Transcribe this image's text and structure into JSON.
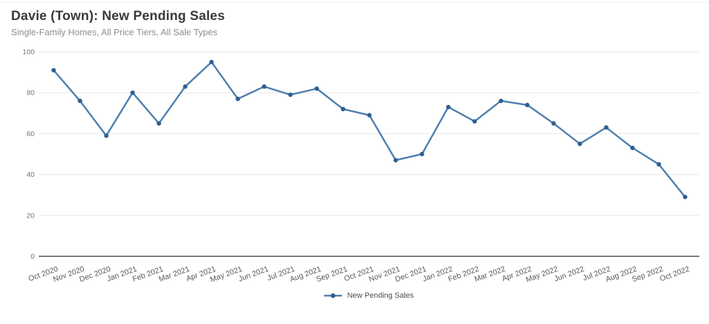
{
  "header": {
    "title": "Davie (Town): New Pending Sales",
    "subtitle": "Single-Family Homes, All Price Tiers, All Sale Types"
  },
  "chart_data": {
    "type": "line",
    "title": "Davie (Town): New Pending Sales",
    "subtitle": "Single-Family Homes, All Price Tiers, All Sale Types",
    "categories": [
      "Oct 2020",
      "Nov 2020",
      "Dec 2020",
      "Jan 2021",
      "Feb 2021",
      "Mar 2021",
      "Apr 2021",
      "May 2021",
      "Jun 2021",
      "Jul 2021",
      "Aug 2021",
      "Sep 2021",
      "Oct 2021",
      "Nov 2021",
      "Dec 2021",
      "Jan 2022",
      "Feb 2022",
      "Mar 2022",
      "Apr 2022",
      "May 2022",
      "Jun 2022",
      "Jul 2022",
      "Aug 2022",
      "Sep 2022",
      "Oct 2022"
    ],
    "series": [
      {
        "name": "New Pending Sales",
        "values": [
          91,
          76,
          59,
          80,
          65,
          83,
          95,
          77,
          83,
          79,
          82,
          72,
          69,
          47,
          50,
          73,
          66,
          76,
          74,
          65,
          55,
          63,
          53,
          45,
          29
        ]
      }
    ],
    "xlabel": "",
    "ylabel": "",
    "ylim": [
      0,
      100
    ],
    "yticks": [
      0,
      20,
      40,
      60,
      80,
      100
    ],
    "grid": true,
    "legend": {
      "label": "New Pending Sales",
      "position": "bottom-center"
    },
    "colors": {
      "line": "#4d7fae",
      "marker": "#2e5f90",
      "gridline": "#e7e7e7",
      "axis_line": "#4a4a4a",
      "y_tick_label": "#737373",
      "x_tick_label": "#595959",
      "title": "#3a3a3a",
      "subtitle": "#8d8d8d"
    }
  }
}
